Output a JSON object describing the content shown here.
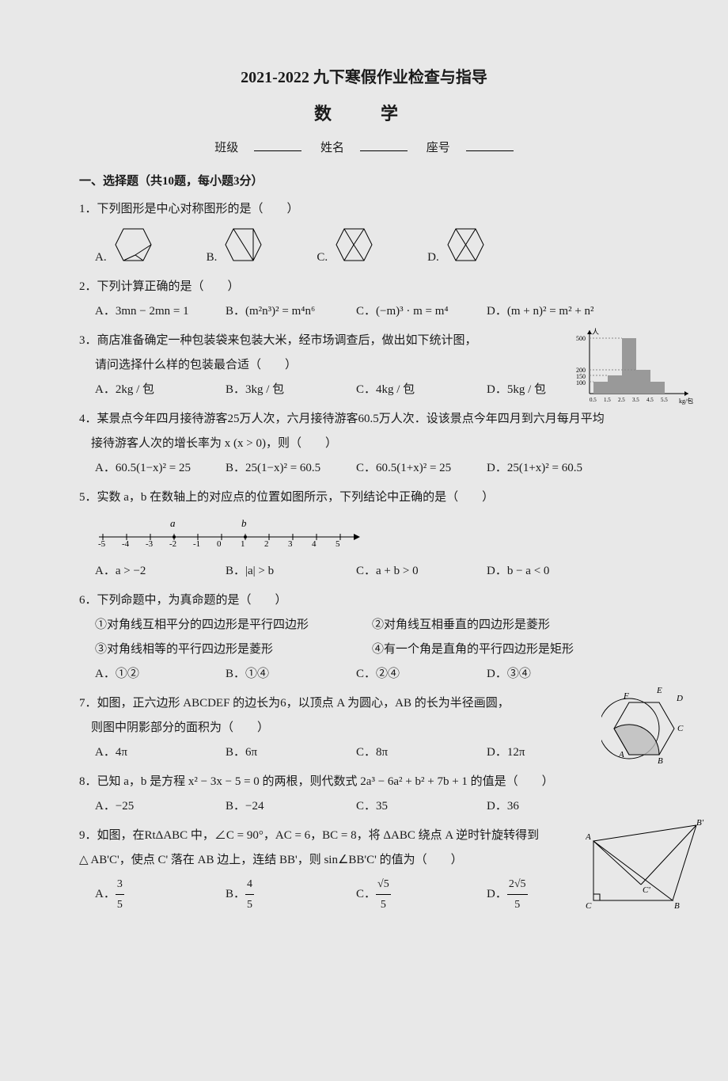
{
  "title": "2021-2022 九下寒假作业检查与指导",
  "subject": "数　学",
  "info": {
    "class_label": "班级",
    "name_label": "姓名",
    "seat_label": "座号"
  },
  "section1_header": "一、选择题（共10题，每小题3分）",
  "q1": {
    "text": "1．下列图形是中心对称图形的是（　　）",
    "labels": [
      "A.",
      "B.",
      "C.",
      "D."
    ]
  },
  "q2": {
    "text": "2．下列计算正确的是（　　）",
    "a": "A．3mn − 2mn = 1",
    "b": "B．(m²n³)² = m⁴n⁶",
    "c": "C．(−m)³ · m = m⁴",
    "d": "D．(m + n)² = m² + n²"
  },
  "q3": {
    "text1": "3．商店准备确定一种包装袋来包装大米，经市场调查后，做出如下统计图，",
    "text2": "请问选择什么样的包装最合适（　　）",
    "a": "A．2kg / 包",
    "b": "B．3kg / 包",
    "c": "C．4kg / 包",
    "d": "D．5kg / 包",
    "chart": {
      "y_label": "人",
      "x_label": "kg/包",
      "x_ticks": [
        "0.5",
        "1.5",
        "2.5",
        "3.5",
        "4.5",
        "5.5"
      ],
      "y_ticks": [
        "100",
        "150",
        "200",
        "500"
      ],
      "bars": [
        100,
        150,
        500,
        200,
        100
      ],
      "bar_color": "#999999",
      "axis_color": "#000000",
      "dash_color": "#888888"
    }
  },
  "q4": {
    "text1": "4．某景点今年四月接待游客25万人次，六月接待游客60.5万人次．设该景点今年四月到六月每月平均",
    "text2": "接待游客人次的增长率为 x (x > 0)，则（　　）",
    "a": "A．60.5(1−x)² = 25",
    "b": "B．25(1−x)² = 60.5",
    "c": "C．60.5(1+x)² = 25",
    "d": "D．25(1+x)² = 60.5"
  },
  "q5": {
    "text": "5．实数 a，b 在数轴上的对应点的位置如图所示，下列结论中正确的是（　　）",
    "ticks": [
      "-5",
      "-4",
      "-3",
      "-2",
      "-1",
      "0",
      "1",
      "2",
      "3",
      "4",
      "5"
    ],
    "a_label": "a",
    "b_label": "b",
    "a_pos": -2,
    "b_pos": 1,
    "a": "A．a > −2",
    "b": "B．|a| > b",
    "c": "C．a + b > 0",
    "d": "D．b − a < 0"
  },
  "q6": {
    "text": "6．下列命题中，为真命题的是（　　）",
    "s1": "①对角线互相平分的四边形是平行四边形",
    "s2": "②对角线互相垂直的四边形是菱形",
    "s3": "③对角线相等的平行四边形是菱形",
    "s4": "④有一个角是直角的平行四边形是矩形",
    "a": "A．①②",
    "b": "B．①④",
    "c": "C．②④",
    "d": "D．③④"
  },
  "q7": {
    "text1": "7．如图，正六边形 ABCDEF 的边长为6，以顶点 A 为圆心，AB 的长为半径画圆，",
    "text2": "则图中阴影部分的面积为（　　）",
    "a": "A．4π",
    "b": "B．6π",
    "c": "C．8π",
    "d": "D．12π",
    "labels": {
      "A": "A",
      "B": "B",
      "C": "C",
      "D": "D",
      "E": "E",
      "F": "F"
    }
  },
  "q8": {
    "text": "8．已知 a，b 是方程 x² − 3x − 5 = 0 的两根，则代数式 2a³ − 6a² + b² + 7b + 1 的值是（　　）",
    "a": "A．−25",
    "b": "B．−24",
    "c": "C．35",
    "d": "D．36"
  },
  "q9": {
    "text1": "9．如图，在RtΔABC 中，∠C = 90°，AC = 6，BC = 8，将 ΔABC 绕点 A 逆时针旋转得到",
    "text2": "△ AB'C'，使点 C' 落在 AB 边上，连结 BB'，则 sin∠BB'C' 的值为（　　）",
    "a_num": "3",
    "a_den": "5",
    "b_num": "4",
    "b_den": "5",
    "c_num": "√5",
    "c_den": "5",
    "d_num": "2√5",
    "d_den": "5",
    "labels": {
      "A": "A",
      "B": "B",
      "C": "C",
      "B2": "B'",
      "C2": "C'"
    }
  }
}
